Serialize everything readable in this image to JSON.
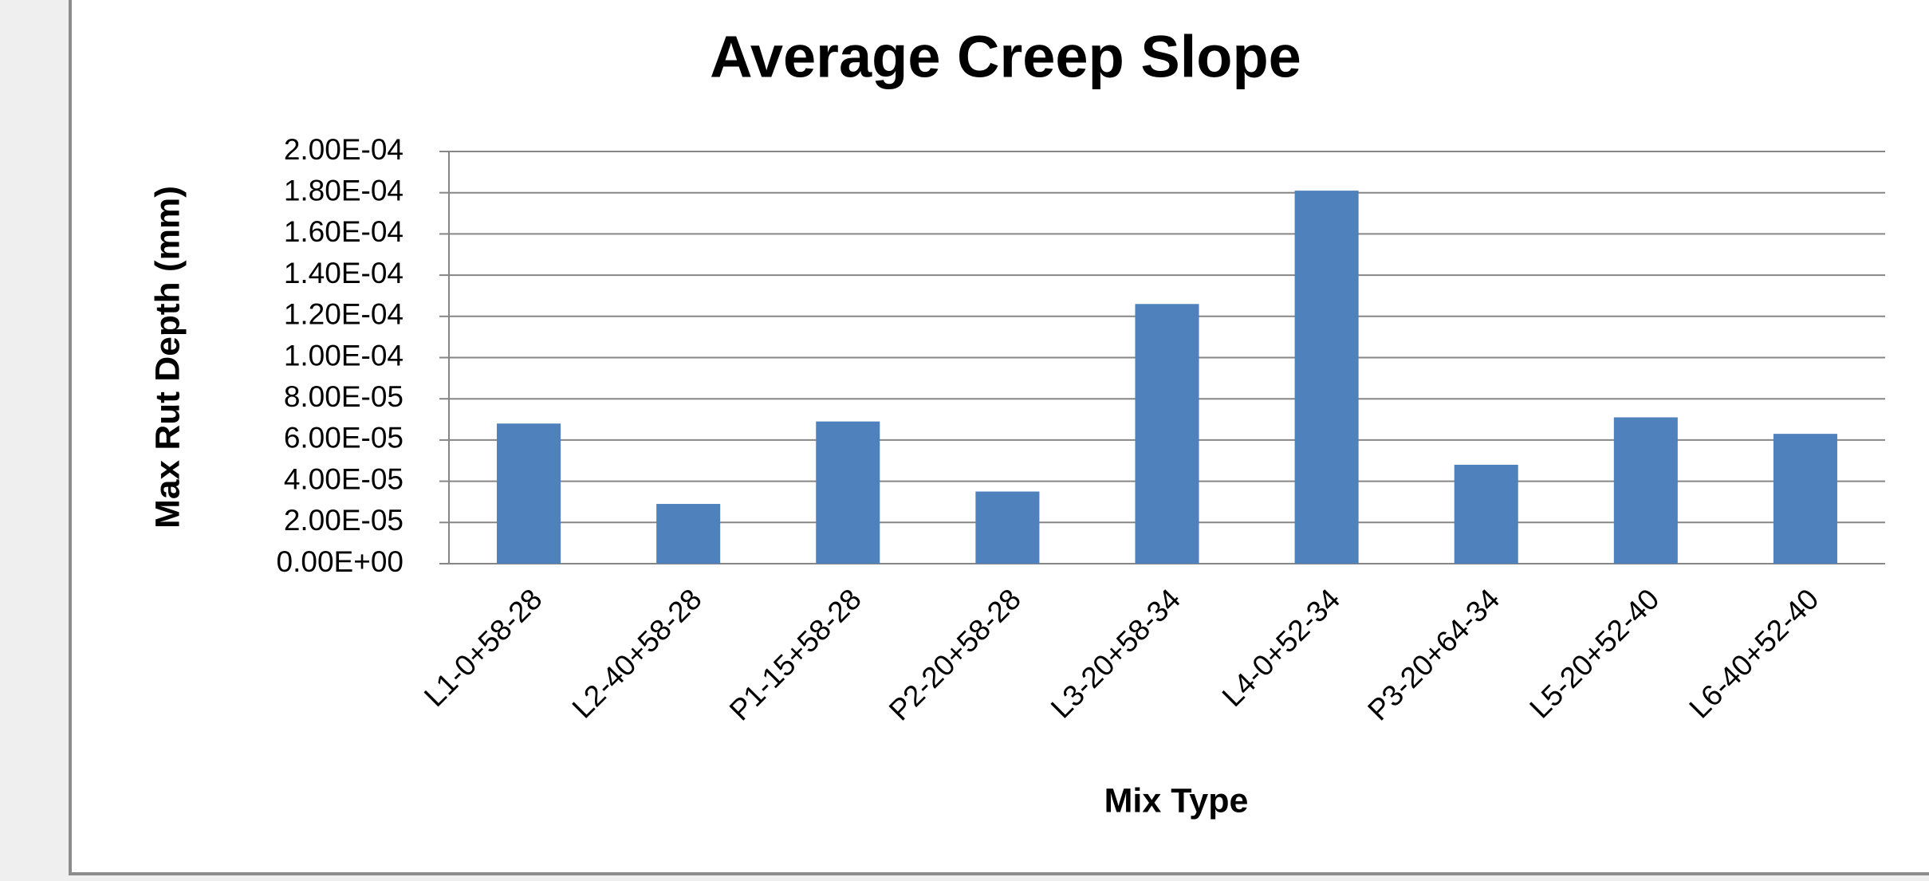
{
  "chart_data": {
    "type": "bar",
    "title": "Average Creep Slope",
    "x_label": "Mix Type",
    "y_label": "Max Rut Depth (mm)",
    "categories": [
      "L1-0+58-28",
      "L2-40+58-28",
      "P1-15+58-28",
      "P2-20+58-28",
      "L3-20+58-34",
      "L4-0+52-34",
      "P3-20+64-34",
      "L5-20+52-40",
      "L6-40+52-40"
    ],
    "values": [
      6.8e-05,
      2.9e-05,
      6.9e-05,
      3.5e-05,
      0.000126,
      0.000181,
      4.8e-05,
      7.1e-05,
      6.3e-05
    ],
    "color": "#4f81bd",
    "ylim": [
      0,
      0.0002
    ],
    "yticks": [
      {
        "value": 0,
        "label": "0.00E+00"
      },
      {
        "value": 2e-05,
        "label": "2.00E-05"
      },
      {
        "value": 4e-05,
        "label": "4.00E-05"
      },
      {
        "value": 6e-05,
        "label": "6.00E-05"
      },
      {
        "value": 8e-05,
        "label": "8.00E-05"
      },
      {
        "value": 0.0001,
        "label": "1.00E-04"
      },
      {
        "value": 0.00012,
        "label": "1.20E-04"
      },
      {
        "value": 0.00014,
        "label": "1.40E-04"
      },
      {
        "value": 0.00016,
        "label": "1.60E-04"
      },
      {
        "value": 0.00018,
        "label": "1.80E-04"
      },
      {
        "value": 0.0002,
        "label": "2.00E-04"
      }
    ],
    "grid": true
  }
}
